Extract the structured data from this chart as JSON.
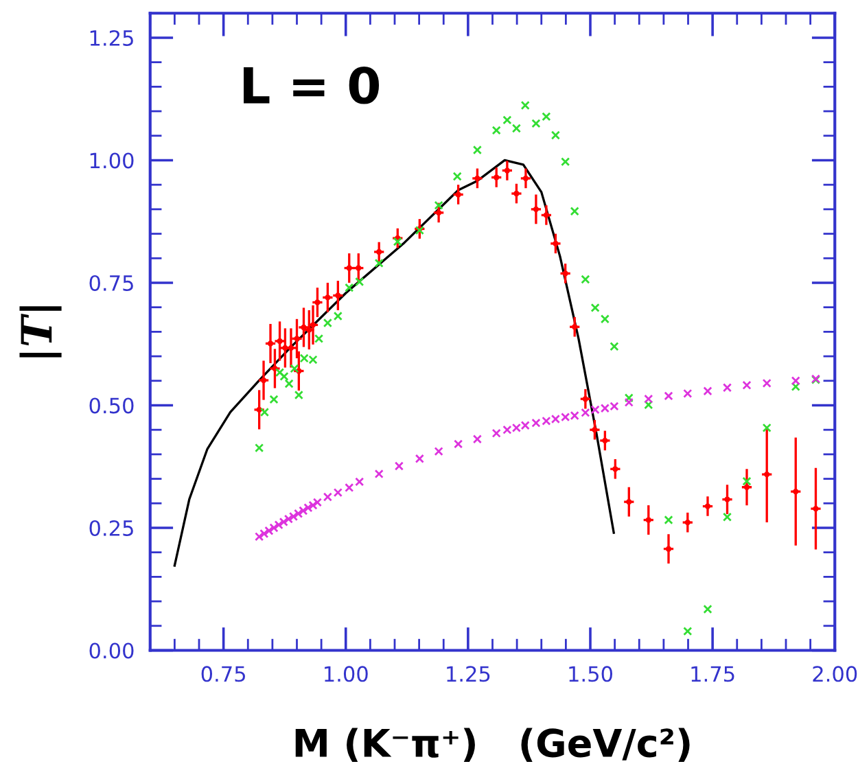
{
  "chart_data": {
    "type": "scatter",
    "xlabel": "M (K⁻π⁺)   (GeV/c²)",
    "ylabel": "|T|",
    "annotations": [
      "L = 0"
    ],
    "xlim": [
      0.6,
      2.0
    ],
    "ylim": [
      0,
      1.3
    ],
    "xticks": [
      0.75,
      {
        "value": 1.0,
        "label": "1.00"
      },
      1.25,
      {
        "value": 1.5,
        "label": "1.50"
      },
      1.75,
      {
        "value": 2.0,
        "label": "2.00"
      }
    ],
    "yticks": [
      {
        "value": 0,
        "label": "0.00"
      },
      0.25,
      {
        "value": 0.5,
        "label": "0.50"
      },
      0.75,
      {
        "value": 1.0,
        "label": "1.00"
      },
      1.25
    ],
    "grid": false,
    "legend": false,
    "series": [
      {
        "type": "line",
        "color": "#000000",
        "marker": "none",
        "x": [
          0.65,
          0.68,
          0.717,
          0.764,
          0.823,
          0.886,
          1.0,
          1.12,
          1.23,
          1.269,
          1.325,
          1.363,
          1.4,
          1.438,
          1.476,
          1.513,
          1.548
        ],
        "values": [
          0.173,
          0.308,
          0.411,
          0.486,
          0.551,
          0.617,
          0.729,
          0.832,
          0.939,
          0.958,
          1.0,
          0.991,
          0.935,
          0.804,
          0.636,
          0.44,
          0.24
        ]
      },
      {
        "color": "#33dd33",
        "marker": "cross",
        "x": [
          0.823,
          0.834,
          0.853,
          0.865,
          0.874,
          0.884,
          0.895,
          0.904,
          0.915,
          0.933,
          0.945,
          0.963,
          0.984,
          1.007,
          1.028,
          1.068,
          1.106,
          1.151,
          1.19,
          1.228,
          1.269,
          1.308,
          1.33,
          1.349,
          1.367,
          1.389,
          1.41,
          1.429,
          1.449,
          1.468,
          1.49,
          1.51,
          1.53,
          1.549,
          1.579,
          1.619,
          1.66,
          1.699,
          1.74,
          1.78,
          1.82,
          1.861,
          1.92,
          1.961
        ],
        "values": [
          0.413,
          0.486,
          0.512,
          0.567,
          0.559,
          0.544,
          0.575,
          0.521,
          0.596,
          0.593,
          0.636,
          0.668,
          0.682,
          0.74,
          0.752,
          0.79,
          0.834,
          0.857,
          0.908,
          0.967,
          1.021,
          1.061,
          1.082,
          1.065,
          1.112,
          1.075,
          1.089,
          1.051,
          0.997,
          0.896,
          0.757,
          0.699,
          0.676,
          0.62,
          0.515,
          0.501,
          0.266,
          0.039,
          0.084,
          0.272,
          0.345,
          0.454,
          0.538,
          0.552
        ]
      },
      {
        "color": "#dd33dd",
        "marker": "cross",
        "x": [
          0.823,
          0.833,
          0.843,
          0.853,
          0.863,
          0.873,
          0.883,
          0.893,
          0.903,
          0.913,
          0.923,
          0.933,
          0.942,
          0.963,
          0.984,
          1.007,
          1.028,
          1.068,
          1.109,
          1.151,
          1.19,
          1.23,
          1.269,
          1.308,
          1.33,
          1.349,
          1.367,
          1.389,
          1.41,
          1.429,
          1.449,
          1.468,
          1.49,
          1.51,
          1.53,
          1.549,
          1.579,
          1.619,
          1.66,
          1.699,
          1.74,
          1.78,
          1.82,
          1.861,
          1.92,
          1.961
        ],
        "values": [
          0.232,
          0.238,
          0.244,
          0.25,
          0.256,
          0.262,
          0.268,
          0.273,
          0.279,
          0.285,
          0.291,
          0.296,
          0.302,
          0.313,
          0.322,
          0.332,
          0.344,
          0.36,
          0.376,
          0.391,
          0.406,
          0.421,
          0.431,
          0.443,
          0.45,
          0.454,
          0.459,
          0.464,
          0.468,
          0.472,
          0.476,
          0.479,
          0.485,
          0.491,
          0.494,
          0.498,
          0.506,
          0.513,
          0.519,
          0.524,
          0.529,
          0.536,
          0.541,
          0.545,
          0.55,
          0.554
        ]
      },
      {
        "color": "#ff0000",
        "marker": "none",
        "x": [
          0.823,
          0.832,
          0.846,
          0.855,
          0.865,
          0.876,
          0.888,
          0.9,
          0.904,
          0.914,
          0.925,
          0.933,
          0.942,
          0.963,
          0.984,
          1.007,
          1.026,
          1.068,
          1.106,
          1.151,
          1.19,
          1.23,
          1.269,
          1.308,
          1.33,
          1.349,
          1.368,
          1.389,
          1.41,
          1.429,
          1.449,
          1.468,
          1.49,
          1.509,
          1.53,
          1.551,
          1.579,
          1.619,
          1.66,
          1.699,
          1.74,
          1.78,
          1.82,
          1.861,
          1.92,
          1.961
        ],
        "values": [
          0.491,
          0.551,
          0.626,
          0.575,
          0.631,
          0.617,
          0.617,
          0.636,
          0.57,
          0.659,
          0.654,
          0.664,
          0.71,
          0.72,
          0.724,
          0.78,
          0.78,
          0.813,
          0.841,
          0.86,
          0.893,
          0.93,
          0.963,
          0.965,
          0.979,
          0.932,
          0.963,
          0.9,
          0.888,
          0.83,
          0.769,
          0.66,
          0.513,
          0.45,
          0.428,
          0.37,
          0.303,
          0.266,
          0.207,
          0.261,
          0.294,
          0.308,
          0.333,
          0.359,
          0.324,
          0.289
        ],
        "errors": [
          0.04,
          0.04,
          0.04,
          0.04,
          0.04,
          0.04,
          0.04,
          0.04,
          0.04,
          0.04,
          0.04,
          0.04,
          0.03,
          0.03,
          0.03,
          0.03,
          0.03,
          0.02,
          0.02,
          0.02,
          0.02,
          0.02,
          0.02,
          0.02,
          0.02,
          0.02,
          0.02,
          0.03,
          0.02,
          0.02,
          0.02,
          0.02,
          0.02,
          0.02,
          0.02,
          0.02,
          0.03,
          0.03,
          0.03,
          0.02,
          0.02,
          0.03,
          0.037,
          0.098,
          0.11,
          0.083
        ],
        "xerrors": [
          0.01,
          0.01,
          0.01,
          0.01,
          0.01,
          0.01,
          0.01,
          0.01,
          0.01,
          0.01,
          0.01,
          0.01,
          0.01,
          0.01,
          0.01,
          0.01,
          0.01,
          0.01,
          0.01,
          0.01,
          0.01,
          0.01,
          0.01,
          0.01,
          0.01,
          0.01,
          0.01,
          0.01,
          0.01,
          0.01,
          0.01,
          0.01,
          0.01,
          0.01,
          0.01,
          0.01,
          0.01,
          0.01,
          0.01,
          0.01,
          0.01,
          0.01,
          0.01,
          0.01,
          0.01,
          0.01
        ]
      }
    ]
  }
}
